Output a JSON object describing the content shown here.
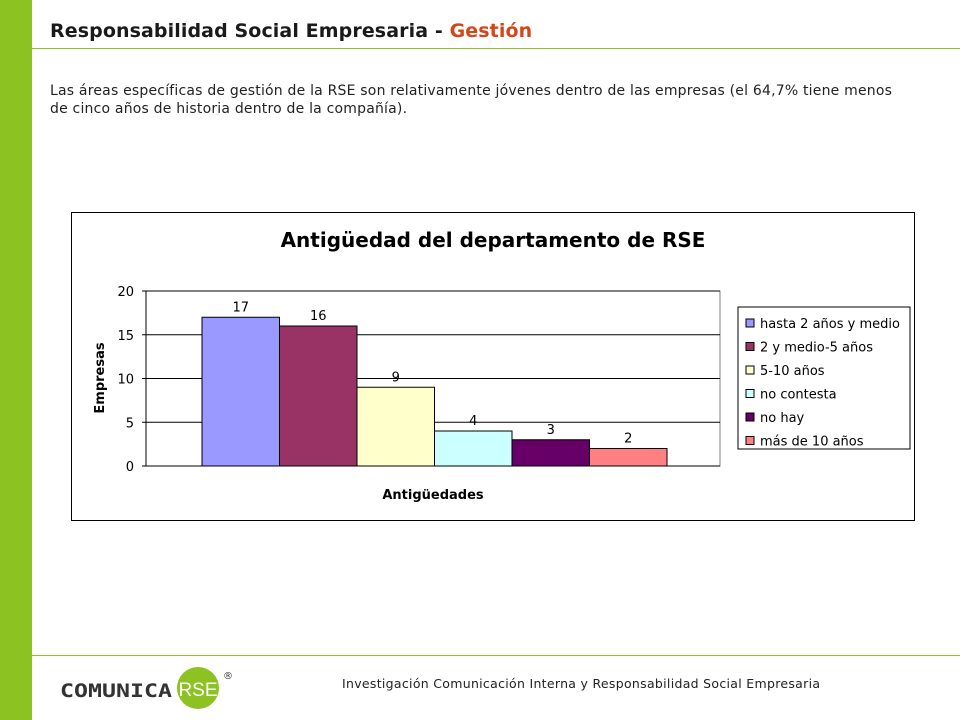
{
  "header": {
    "title_main": "Responsabilidad Social Empresaria - ",
    "title_accent": "Gestión"
  },
  "intro_text": "Las áreas específicas de gestión de la RSE son relativamente jóvenes dentro de las empresas (el 64,7% tiene menos de cinco años de historia dentro de la compañía).",
  "colors": {
    "brand_green": "#8cc221",
    "accent_orange": "#d2461a"
  },
  "chart_data": {
    "type": "bar",
    "title": "Antigüedad del departamento de RSE",
    "xlabel": "Antigüedades",
    "ylabel": "Empresas",
    "ylim": [
      0,
      20
    ],
    "yticks": [
      "0",
      "5",
      "10",
      "15",
      "20"
    ],
    "grid": true,
    "legend_position": "right",
    "series": [
      {
        "name": "hasta 2 años y medio",
        "value": 17,
        "label": "17",
        "color": "#9999ff"
      },
      {
        "name": "2 y medio-5 años",
        "value": 16,
        "label": "16",
        "color": "#993366"
      },
      {
        "name": "5-10 años",
        "value": 9,
        "label": "9",
        "color": "#ffffcc"
      },
      {
        "name": "no contesta",
        "value": 4,
        "label": "4",
        "color": "#ccffff"
      },
      {
        "name": "no hay",
        "value": 3,
        "label": "3",
        "color": "#660066"
      },
      {
        "name": "más de 10 años",
        "value": 2,
        "label": "2",
        "color": "#ff8080"
      }
    ]
  },
  "footer": {
    "logo_text": "COMUNICA",
    "logo_badge": "RSE",
    "logo_registered": "®",
    "caption": "Investigación  Comunicación  Interna  y Responsabilidad  Social  Empresaria"
  }
}
